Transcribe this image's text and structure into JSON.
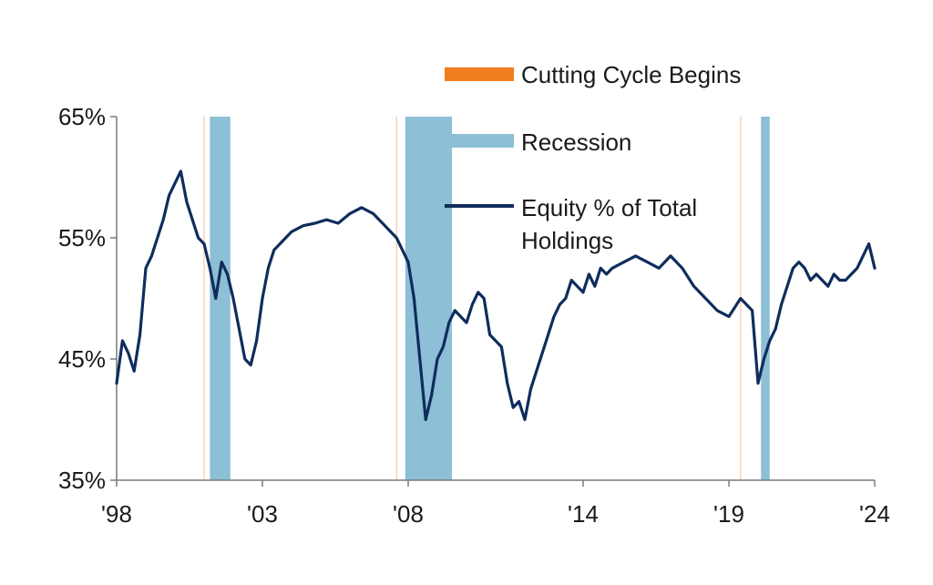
{
  "chart_data": {
    "type": "line",
    "title": "",
    "xlabel": "",
    "ylabel": "",
    "xlim": [
      1998,
      2024
    ],
    "ylim": [
      35,
      65
    ],
    "y_ticks": [
      35,
      45,
      55,
      65
    ],
    "y_tick_labels": [
      "35%",
      "45%",
      "55%",
      "65%"
    ],
    "x_ticks": [
      1998,
      2003,
      2008,
      2014,
      2019,
      2024
    ],
    "x_tick_labels": [
      "'98",
      "'03",
      "'08",
      "'14",
      "'19",
      "'24"
    ],
    "grid": false,
    "legend_position": "top-right",
    "legend": [
      {
        "label": "Cutting Cycle Begins",
        "color": "#f07d1e",
        "kind": "bar"
      },
      {
        "label": "Recession",
        "color": "#8dbfd6",
        "kind": "bar"
      },
      {
        "label": "Equity % of Total Holdings",
        "color": "#0f2d5c",
        "kind": "line"
      }
    ],
    "cutting_cycle_begins": [
      2001.0,
      2007.6,
      2019.4
    ],
    "recessions": [
      {
        "start": 2001.2,
        "end": 2001.9
      },
      {
        "start": 2007.9,
        "end": 2009.5
      },
      {
        "start": 2020.1,
        "end": 2020.4
      }
    ],
    "series": [
      {
        "name": "Equity % of Total Holdings",
        "color": "#0f2d5c",
        "x": [
          1998.0,
          1998.2,
          1998.4,
          1998.6,
          1998.8,
          1999.0,
          1999.2,
          1999.4,
          1999.6,
          1999.8,
          2000.0,
          2000.2,
          2000.4,
          2000.6,
          2000.8,
          2001.0,
          2001.2,
          2001.4,
          2001.6,
          2001.8,
          2002.0,
          2002.2,
          2002.4,
          2002.6,
          2002.8,
          2003.0,
          2003.2,
          2003.4,
          2003.6,
          2003.8,
          2004.0,
          2004.4,
          2004.8,
          2005.2,
          2005.6,
          2006.0,
          2006.4,
          2006.8,
          2007.2,
          2007.6,
          2007.8,
          2008.0,
          2008.2,
          2008.4,
          2008.6,
          2008.8,
          2009.0,
          2009.2,
          2009.4,
          2009.6,
          2009.8,
          2010.0,
          2010.2,
          2010.4,
          2010.6,
          2010.8,
          2011.0,
          2011.2,
          2011.4,
          2011.6,
          2011.8,
          2012.0,
          2012.2,
          2012.4,
          2012.6,
          2012.8,
          2013.0,
          2013.2,
          2013.4,
          2013.6,
          2013.8,
          2014.0,
          2014.2,
          2014.4,
          2014.6,
          2014.8,
          2015.0,
          2015.4,
          2015.8,
          2016.2,
          2016.6,
          2017.0,
          2017.4,
          2017.8,
          2018.2,
          2018.6,
          2019.0,
          2019.4,
          2019.8,
          2020.0,
          2020.2,
          2020.4,
          2020.6,
          2020.8,
          2021.0,
          2021.2,
          2021.4,
          2021.6,
          2021.8,
          2022.0,
          2022.2,
          2022.4,
          2022.6,
          2022.8,
          2023.0,
          2023.2,
          2023.4,
          2023.6,
          2023.8,
          2024.0
        ],
        "values": [
          43.0,
          46.5,
          45.5,
          44.0,
          47.0,
          52.5,
          53.5,
          55.0,
          56.5,
          58.5,
          59.5,
          60.5,
          58.0,
          56.5,
          55.0,
          54.5,
          52.5,
          50.0,
          53.0,
          52.0,
          50.0,
          47.5,
          45.0,
          44.5,
          46.5,
          50.0,
          52.5,
          54.0,
          54.5,
          55.0,
          55.5,
          56.0,
          56.2,
          56.5,
          56.2,
          57.0,
          57.5,
          57.0,
          56.0,
          55.0,
          54.0,
          53.0,
          50.0,
          45.0,
          40.0,
          42.0,
          45.0,
          46.0,
          48.0,
          49.0,
          48.5,
          48.0,
          49.5,
          50.5,
          50.0,
          47.0,
          46.5,
          46.0,
          43.0,
          41.0,
          41.5,
          40.0,
          42.5,
          44.0,
          45.5,
          47.0,
          48.5,
          49.5,
          50.0,
          51.5,
          51.0,
          50.5,
          52.0,
          51.0,
          52.5,
          52.0,
          52.5,
          53.0,
          53.5,
          53.0,
          52.5,
          53.5,
          52.5,
          51.0,
          50.0,
          49.0,
          48.5,
          50.0,
          49.0,
          43.0,
          45.0,
          46.5,
          47.5,
          49.5,
          51.0,
          52.5,
          53.0,
          52.5,
          51.5,
          52.0,
          51.5,
          51.0,
          52.0,
          51.5,
          51.5,
          52.0,
          52.5,
          53.5,
          54.5,
          52.5
        ]
      }
    ]
  }
}
